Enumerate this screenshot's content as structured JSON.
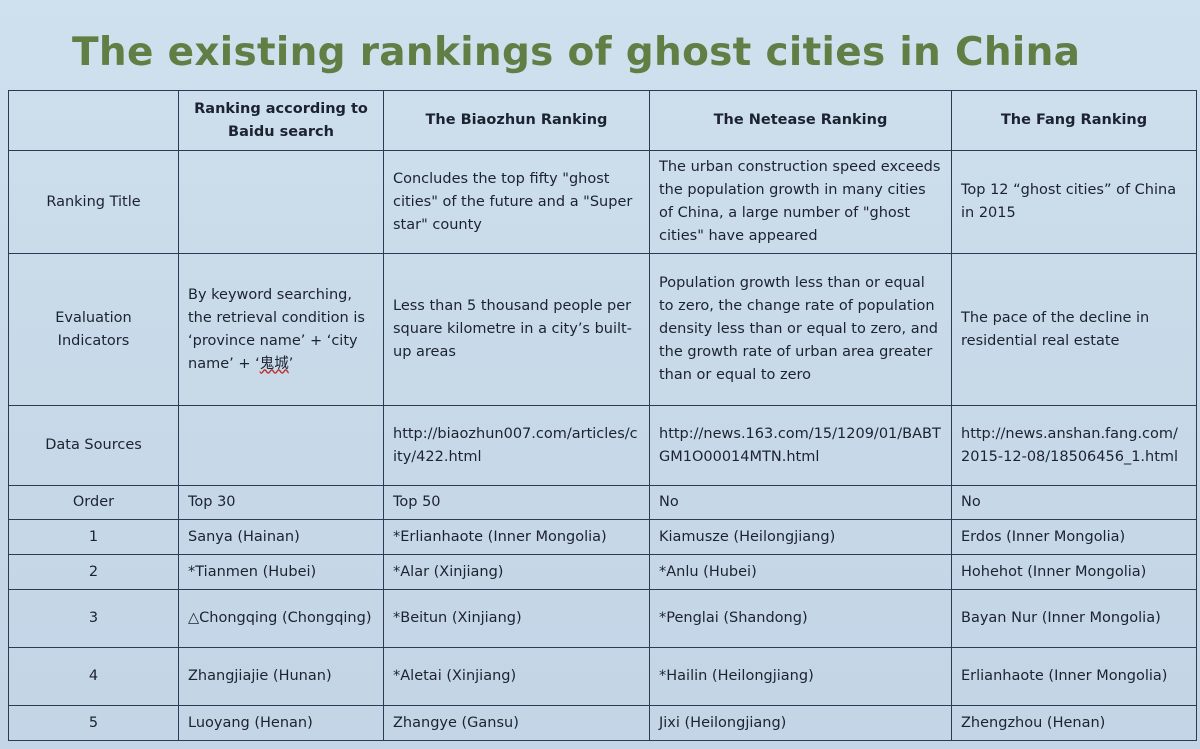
{
  "title": "The existing rankings of ghost cities in China",
  "table": {
    "headers": [
      "",
      "Ranking according to Baidu search",
      "The Biaozhun Ranking",
      "The Netease Ranking",
      "The Fang Ranking"
    ],
    "ranking_title": {
      "label": "Ranking Title",
      "baidu": "",
      "biaozhun": "Concludes the top fifty \"ghost cities\" of the future and a \"Super star\" county",
      "netease": "The urban construction speed exceeds the population growth in many cities of China, a large number of \"ghost cities\" have appeared",
      "fang": "Top 12 “ghost cities” of China in 2015"
    },
    "evaluation": {
      "label": "Evaluation Indicators",
      "baidu_text": "By keyword searching, the retrieval condition is ‘province name’ + ‘city name’ + ‘",
      "baidu_cjk": "鬼城",
      "baidu_end": "’",
      "biaozhun": "Less than 5 thousand people per square kilometre in a city’s built-up areas",
      "netease": "Population growth less than or equal to zero, the change rate of population density less than or equal to zero, and the growth rate of urban area greater than or equal to zero",
      "fang": "The pace of the decline in residential real estate"
    },
    "sources": {
      "label": "Data Sources",
      "baidu": "",
      "biaozhun": "http://biaozhun007.com/articles/city/422.html",
      "netease": "http://news.163.com/15/1209/01/BABTGM1O00014MTN.html",
      "fang": "http://news.anshan.fang.com/2015-12-08/18506456_1.html"
    },
    "order": {
      "label": "Order",
      "baidu": "Top 30",
      "biaozhun": "Top 50",
      "netease": "No",
      "fang": "No"
    },
    "rows": [
      {
        "n": "1",
        "baidu": "Sanya (Hainan)",
        "biaozhun": "*Erlianhaote (Inner Mongolia)",
        "netease": "Kiamusze (Heilongjiang)",
        "fang": "Erdos (Inner Mongolia)"
      },
      {
        "n": "2",
        "baidu": "*Tianmen (Hubei)",
        "biaozhun": "*Alar (Xinjiang)",
        "netease": "*Anlu (Hubei)",
        "fang": "Hohehot (Inner Mongolia)"
      },
      {
        "n": "3",
        "baidu": "△Chongqing (Chongqing)",
        "biaozhun": "*Beitun (Xinjiang)",
        "netease": "*Penglai (Shandong)",
        "fang": "Bayan Nur (Inner Mongolia)"
      },
      {
        "n": "4",
        "baidu": "Zhangjiajie (Hunan)",
        "biaozhun": "*Aletai (Xinjiang)",
        "netease": "*Hailin (Heilongjiang)",
        "fang": "Erlianhaote (Inner Mongolia)"
      },
      {
        "n": "5",
        "baidu": "Luoyang (Henan)",
        "biaozhun": "Zhangye (Gansu)",
        "netease": "Jixi (Heilongjiang)",
        "fang": "Zhengzhou (Henan)"
      }
    ]
  }
}
